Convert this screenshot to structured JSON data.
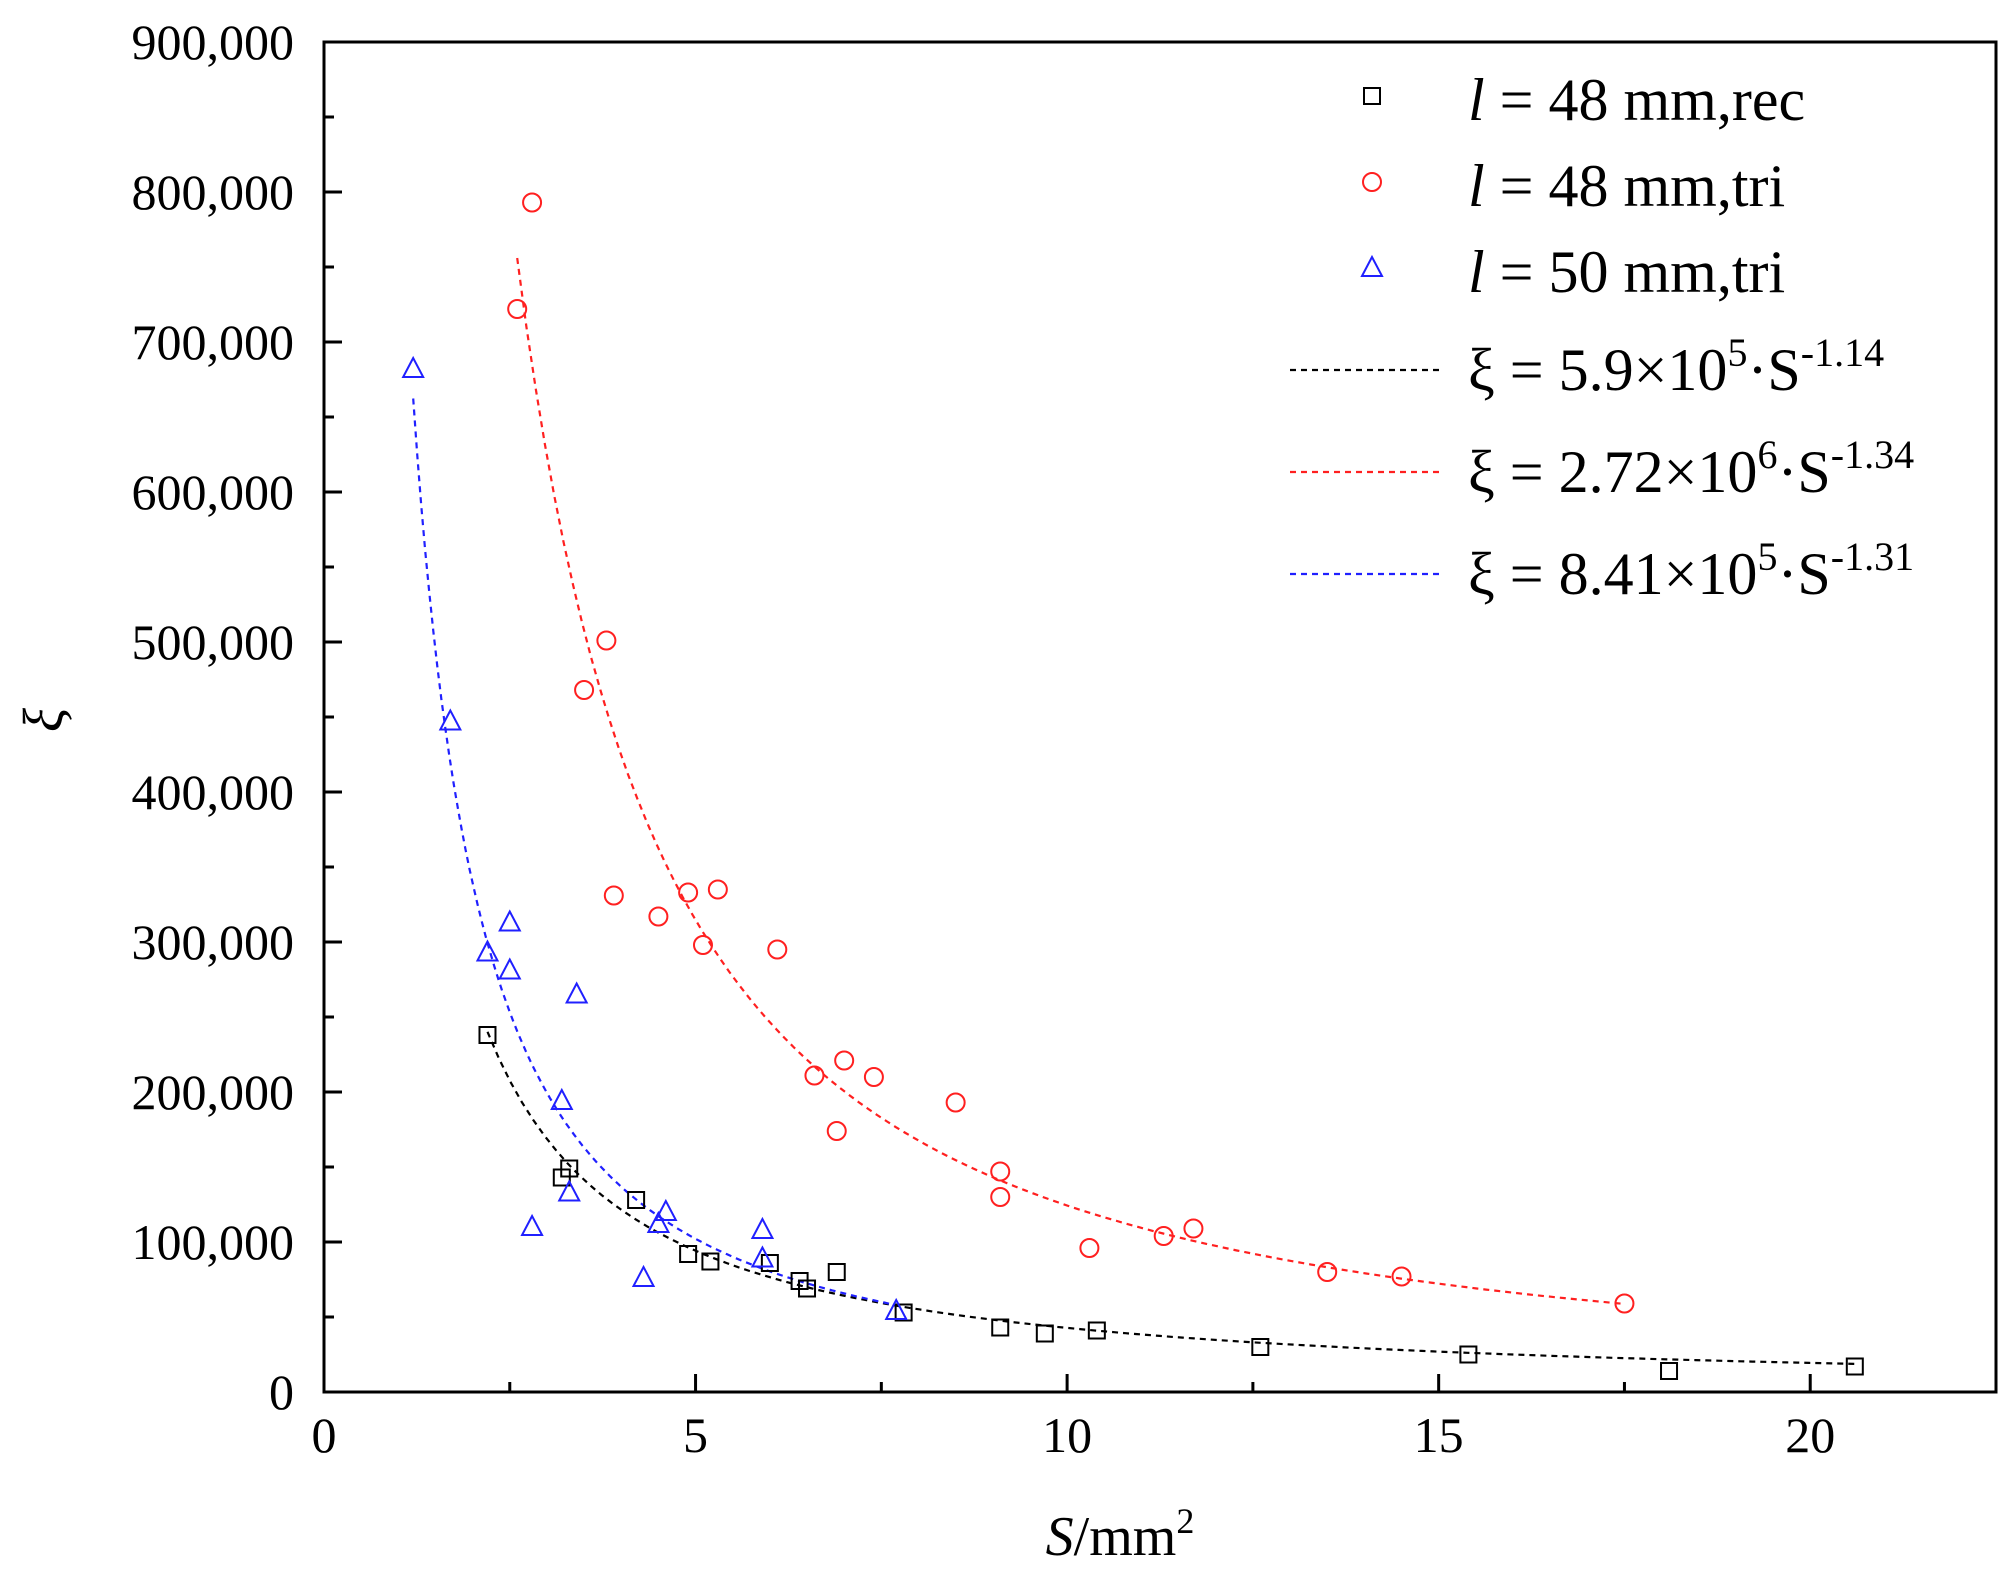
{
  "chart_data": {
    "type": "scatter",
    "xlabel_italic": "S",
    "xlabel_rest": "/mm",
    "xlabel_sup": "2",
    "ylabel": "ξ",
    "xlim": [
      0,
      22.5
    ],
    "ylim": [
      0,
      900000
    ],
    "x_ticks": [
      0,
      5,
      10,
      15,
      20
    ],
    "x_tick_labels": [
      "0",
      "5",
      "10",
      "15",
      "20"
    ],
    "y_ticks": [
      0,
      100000,
      200000,
      300000,
      400000,
      500000,
      600000,
      700000,
      800000,
      900000
    ],
    "y_tick_labels": [
      "0",
      "100,000",
      "200,000",
      "300,000",
      "400,000",
      "500,000",
      "600,000",
      "700,000",
      "800,000",
      "900,000"
    ],
    "series": [
      {
        "name": "l = 48 mm,rec",
        "label_italic": "l",
        "label_rest": " = 48 mm,rec",
        "marker": "square",
        "color": "#000000",
        "points": [
          [
            2.2,
            238000
          ],
          [
            3.2,
            143000
          ],
          [
            3.3,
            149000
          ],
          [
            4.2,
            128000
          ],
          [
            4.9,
            92000
          ],
          [
            5.2,
            87000
          ],
          [
            6.0,
            86000
          ],
          [
            6.4,
            74000
          ],
          [
            6.5,
            69000
          ],
          [
            6.9,
            80000
          ],
          [
            7.8,
            53000
          ],
          [
            9.1,
            43000
          ],
          [
            9.7,
            39000
          ],
          [
            10.4,
            41000
          ],
          [
            12.6,
            30000
          ],
          [
            15.4,
            25000
          ],
          [
            18.1,
            14000
          ],
          [
            20.6,
            17000
          ]
        ]
      },
      {
        "name": "l = 48 mm,tri",
        "label_italic": "l",
        "label_rest": " = 48 mm,tri",
        "marker": "circle",
        "color": "#ff2020",
        "points": [
          [
            2.8,
            793000
          ],
          [
            2.6,
            722000
          ],
          [
            3.8,
            501000
          ],
          [
            3.5,
            468000
          ],
          [
            3.9,
            331000
          ],
          [
            4.5,
            317000
          ],
          [
            4.9,
            333000
          ],
          [
            5.3,
            335000
          ],
          [
            5.1,
            298000
          ],
          [
            6.1,
            295000
          ],
          [
            6.6,
            211000
          ],
          [
            7.0,
            221000
          ],
          [
            7.4,
            210000
          ],
          [
            6.9,
            174000
          ],
          [
            8.5,
            193000
          ],
          [
            9.1,
            147000
          ],
          [
            9.1,
            130000
          ],
          [
            10.3,
            96000
          ],
          [
            11.3,
            104000
          ],
          [
            11.7,
            109000
          ],
          [
            13.5,
            80000
          ],
          [
            14.5,
            77000
          ],
          [
            17.5,
            59000
          ]
        ]
      },
      {
        "name": "l = 50 mm,tri",
        "label_italic": "l",
        "label_rest": " = 50 mm,tri",
        "marker": "triangle",
        "color": "#2020ff",
        "points": [
          [
            1.2,
            682000
          ],
          [
            1.7,
            447000
          ],
          [
            2.2,
            293000
          ],
          [
            2.5,
            313000
          ],
          [
            2.5,
            281000
          ],
          [
            3.4,
            265000
          ],
          [
            3.2,
            194000
          ],
          [
            3.3,
            133000
          ],
          [
            2.8,
            110000
          ],
          [
            4.5,
            112000
          ],
          [
            4.6,
            120000
          ],
          [
            4.3,
            76000
          ],
          [
            5.9,
            108000
          ],
          [
            5.9,
            89000
          ],
          [
            7.7,
            54000
          ]
        ]
      }
    ],
    "fits": [
      {
        "label_pre": "ξ = 5.9×10",
        "label_sup1": "5",
        "label_mid": "·S",
        "label_sup2": "-1.14",
        "a": 590000,
        "b": -1.14,
        "x_range": [
          2.2,
          20.6
        ],
        "color": "#000000"
      },
      {
        "label_pre": "ξ = 2.72×10",
        "label_sup1": "6",
        "label_mid": "·S",
        "label_sup2": "-1.34",
        "a": 2720000,
        "b": -1.34,
        "x_range": [
          2.6,
          17.5
        ],
        "color": "#ff2020"
      },
      {
        "label_pre": "ξ = 8.41×10",
        "label_sup1": "5",
        "label_mid": "·S",
        "label_sup2": "-1.31",
        "a": 841000,
        "b": -1.31,
        "x_range": [
          1.2,
          7.7
        ],
        "color": "#2020ff"
      }
    ],
    "legend_position": "top-right"
  }
}
